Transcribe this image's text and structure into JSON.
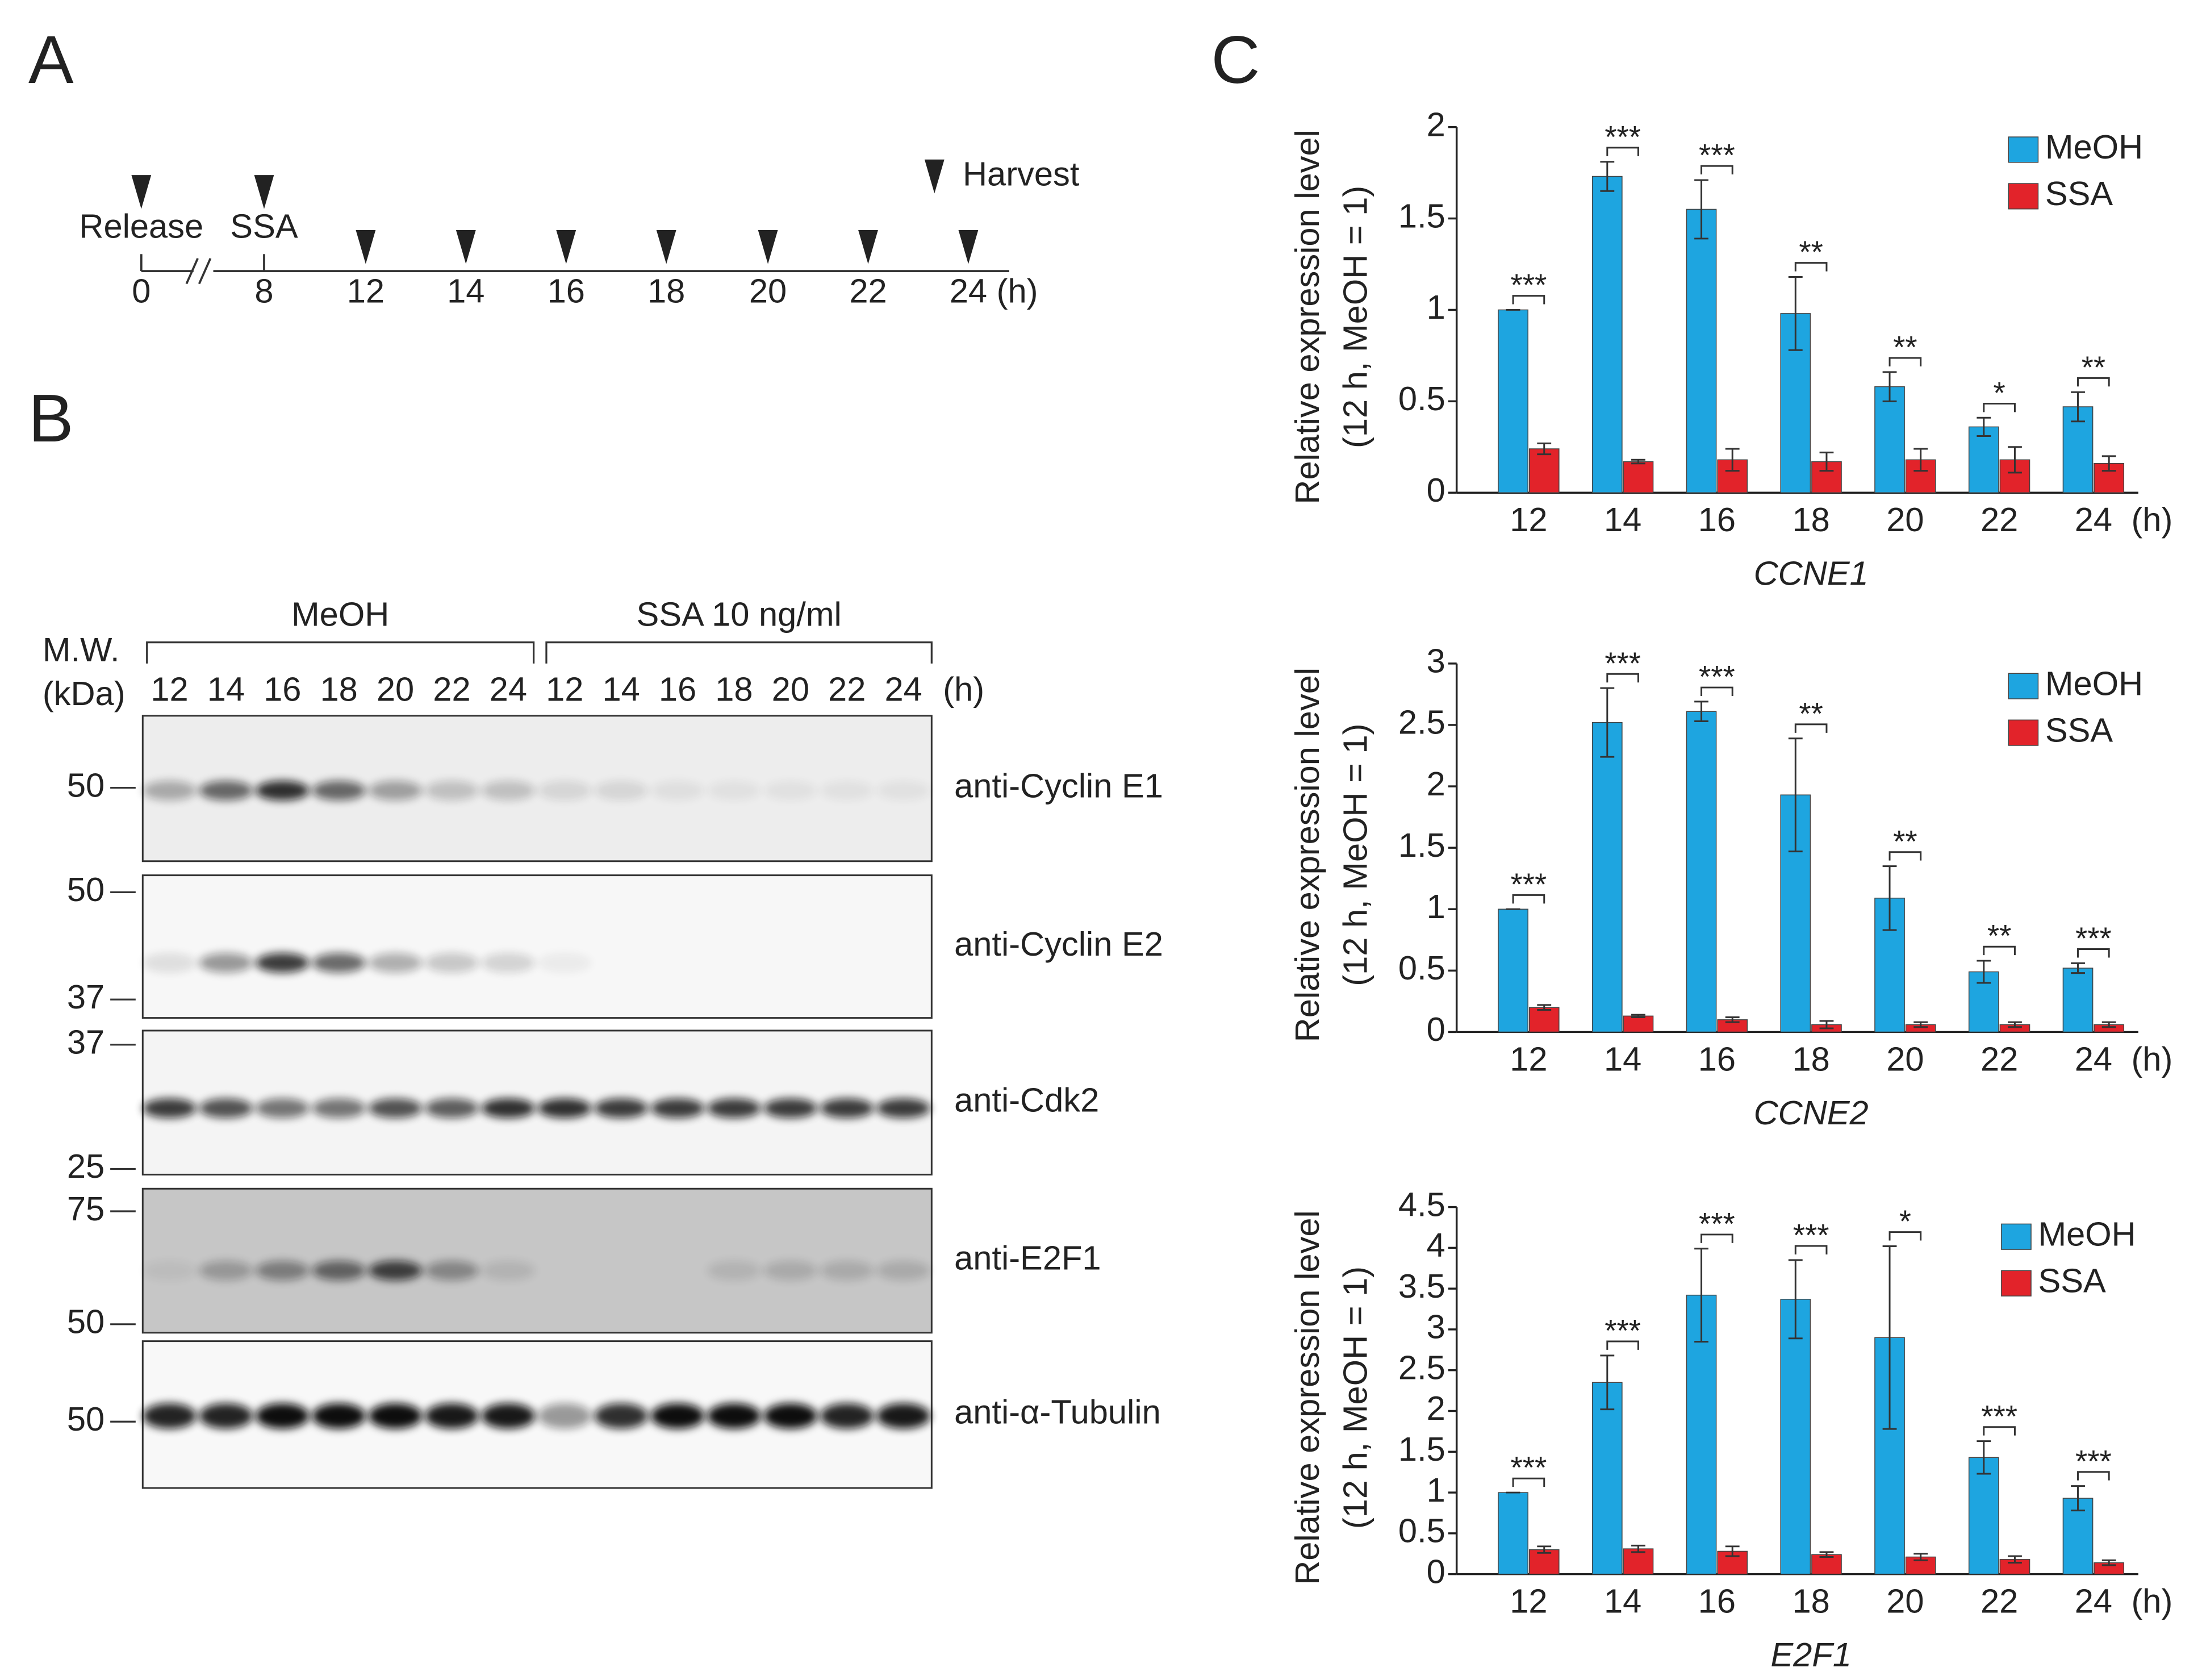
{
  "panel_a": {
    "label": "A",
    "events": [
      "Release",
      "SSA"
    ],
    "harvest": "Harvest",
    "timepoints": [
      "0",
      "8",
      "12",
      "14",
      "16",
      "18",
      "20",
      "22",
      "24"
    ],
    "unit": "(h)"
  },
  "panel_b": {
    "label": "B",
    "mw_header": [
      "M.W.",
      "(kDa)"
    ],
    "groups": [
      {
        "name": "MeOH",
        "lanes": [
          "12",
          "14",
          "16",
          "18",
          "20",
          "22",
          "24"
        ]
      },
      {
        "name": "SSA 10 ng/ml",
        "lanes": [
          "12",
          "14",
          "16",
          "18",
          "20",
          "22",
          "24"
        ]
      }
    ],
    "unit": "(h)",
    "blots": [
      {
        "antibody": "anti-Cyclin E1",
        "markers": [
          "50"
        ]
      },
      {
        "antibody": "anti-Cyclin E2",
        "markers": [
          "50",
          "37"
        ]
      },
      {
        "antibody": "anti-Cdk2",
        "markers": [
          "37",
          "25"
        ]
      },
      {
        "antibody": "anti-E2F1",
        "markers": [
          "75",
          "50"
        ]
      },
      {
        "antibody": "anti-α-Tubulin",
        "markers": [
          "50"
        ]
      }
    ]
  },
  "panel_c": {
    "label": "C"
  },
  "chart_data": [
    {
      "type": "bar",
      "ylabel": [
        "Relative expression level",
        "(12 h, MeOH = 1)"
      ],
      "xlabel": "CCNE1",
      "x_unit": "(h)",
      "categories": [
        "12",
        "14",
        "16",
        "18",
        "20",
        "22",
        "24"
      ],
      "series": [
        {
          "name": "MeOH",
          "color": "#1ea5e0",
          "values": [
            1,
            1.73,
            1.55,
            0.98,
            0.58,
            0.36,
            0.47
          ],
          "errors": [
            0,
            0.08,
            0.16,
            0.2,
            0.08,
            0.05,
            0.08
          ]
        },
        {
          "name": "SSA",
          "color": "#e2232a",
          "values": [
            0.24,
            0.17,
            0.18,
            0.17,
            0.18,
            0.18,
            0.16
          ],
          "errors": [
            0.03,
            0.01,
            0.06,
            0.05,
            0.06,
            0.07,
            0.04
          ]
        }
      ],
      "significance": [
        "***",
        "***",
        "***",
        "**",
        "**",
        "*",
        "**"
      ],
      "ylim": [
        0,
        2
      ],
      "yticks": [
        0,
        0.5,
        1,
        1.5,
        2
      ],
      "legend": "upper right"
    },
    {
      "type": "bar",
      "ylabel": [
        "Relative expression level",
        "(12 h, MeOH = 1)"
      ],
      "xlabel": "CCNE2",
      "x_unit": "(h)",
      "categories": [
        "12",
        "14",
        "16",
        "18",
        "20",
        "22",
        "24"
      ],
      "series": [
        {
          "name": "MeOH",
          "color": "#1ea5e0",
          "values": [
            1,
            2.52,
            2.61,
            1.93,
            1.09,
            0.49,
            0.52
          ],
          "errors": [
            0,
            0.28,
            0.08,
            0.46,
            0.26,
            0.09,
            0.04
          ]
        },
        {
          "name": "SSA",
          "color": "#e2232a",
          "values": [
            0.2,
            0.13,
            0.1,
            0.06,
            0.06,
            0.06,
            0.06
          ],
          "errors": [
            0.02,
            0.01,
            0.02,
            0.03,
            0.02,
            0.02,
            0.02
          ]
        }
      ],
      "significance": [
        "***",
        "***",
        "***",
        "**",
        "**",
        "**",
        "***"
      ],
      "ylim": [
        0,
        3
      ],
      "yticks": [
        0,
        0.5,
        1,
        1.5,
        2,
        2.5,
        3
      ],
      "legend": "upper right"
    },
    {
      "type": "bar",
      "ylabel": [
        "Relative expression level",
        "(12 h, MeOH = 1)"
      ],
      "xlabel": "E2F1",
      "x_unit": "(h)",
      "categories": [
        "12",
        "14",
        "16",
        "18",
        "20",
        "22",
        "24"
      ],
      "series": [
        {
          "name": "MeOH",
          "color": "#1ea5e0",
          "values": [
            1,
            2.35,
            3.42,
            3.37,
            2.9,
            1.43,
            0.93
          ],
          "errors": [
            0,
            0.33,
            0.57,
            0.48,
            1.12,
            0.2,
            0.15
          ]
        },
        {
          "name": "SSA",
          "color": "#e2232a",
          "values": [
            0.3,
            0.31,
            0.28,
            0.24,
            0.21,
            0.18,
            0.14
          ],
          "errors": [
            0.04,
            0.04,
            0.06,
            0.03,
            0.04,
            0.04,
            0.03
          ]
        }
      ],
      "significance": [
        "***",
        "***",
        "***",
        "***",
        "*",
        "***",
        "***"
      ],
      "ylim": [
        0,
        4.5
      ],
      "yticks": [
        0,
        0.5,
        1,
        1.5,
        2,
        2.5,
        3,
        3.5,
        4,
        4.5
      ],
      "legend": "upper right"
    }
  ]
}
